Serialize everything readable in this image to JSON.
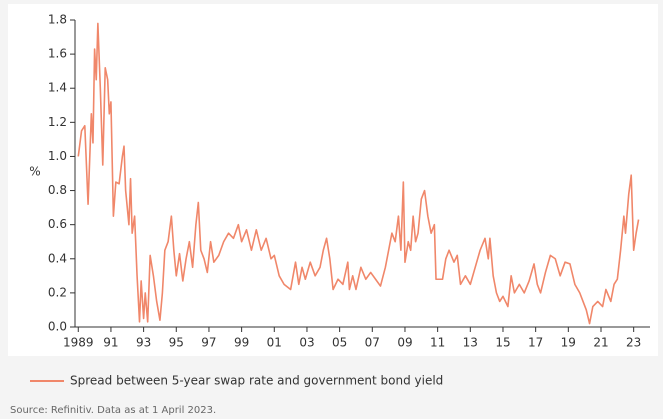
{
  "chart_data": {
    "type": "line",
    "y_label": "%",
    "x": [
      1989.0,
      1989.2,
      1989.4,
      1989.6,
      1989.8,
      1989.9,
      1990.0,
      1990.1,
      1990.2,
      1990.35,
      1990.5,
      1990.65,
      1990.8,
      1990.9,
      1991.0,
      1991.15,
      1991.3,
      1991.5,
      1991.7,
      1991.8,
      1991.9,
      1992.1,
      1992.2,
      1992.3,
      1992.45,
      1992.6,
      1992.75,
      1992.85,
      1993.0,
      1993.1,
      1993.25,
      1993.4,
      1993.6,
      1993.8,
      1994.0,
      1994.15,
      1994.3,
      1994.5,
      1994.7,
      1994.85,
      1995.0,
      1995.2,
      1995.4,
      1995.6,
      1995.8,
      1996.0,
      1996.2,
      1996.35,
      1996.5,
      1996.7,
      1996.9,
      1997.1,
      1997.3,
      1997.6,
      1997.9,
      1998.2,
      1998.5,
      1998.8,
      1999.0,
      1999.3,
      1999.6,
      1999.9,
      2000.2,
      2000.5,
      2000.8,
      2001.0,
      2001.3,
      2001.6,
      2002.0,
      2002.3,
      2002.5,
      2002.7,
      2002.9,
      2003.2,
      2003.5,
      2003.8,
      2004.0,
      2004.2,
      2004.4,
      2004.6,
      2004.9,
      2005.2,
      2005.5,
      2005.6,
      2005.8,
      2006.0,
      2006.3,
      2006.6,
      2006.9,
      2007.2,
      2007.5,
      2007.8,
      2008.0,
      2008.2,
      2008.4,
      2008.6,
      2008.75,
      2008.9,
      2009.0,
      2009.2,
      2009.35,
      2009.5,
      2009.65,
      2009.8,
      2010.0,
      2010.2,
      2010.4,
      2010.6,
      2010.8,
      2010.9,
      2011.3,
      2011.5,
      2011.7,
      2012.0,
      2012.2,
      2012.4,
      2012.7,
      2013.0,
      2013.3,
      2013.6,
      2013.9,
      2014.1,
      2014.2,
      2014.4,
      2014.6,
      2014.8,
      2015.0,
      2015.3,
      2015.5,
      2015.7,
      2016.0,
      2016.3,
      2016.6,
      2016.9,
      2017.1,
      2017.3,
      2017.6,
      2017.9,
      2018.2,
      2018.5,
      2018.8,
      2019.1,
      2019.4,
      2019.7,
      2019.9,
      2020.1,
      2020.3,
      2020.5,
      2020.8,
      2021.1,
      2021.3,
      2021.6,
      2021.8,
      2022.0,
      2022.2,
      2022.4,
      2022.5,
      2022.7,
      2022.85,
      2023.0,
      2023.15,
      2023.3
    ],
    "series": [
      {
        "name": "Spread between 5-year swap rate and government bond yield",
        "color": "#f0876a",
        "values": [
          1.0,
          1.15,
          1.18,
          0.72,
          1.25,
          1.08,
          1.63,
          1.45,
          1.78,
          1.4,
          0.95,
          1.52,
          1.45,
          1.25,
          1.32,
          0.65,
          0.85,
          0.84,
          1.0,
          1.06,
          0.8,
          0.6,
          0.87,
          0.55,
          0.65,
          0.3,
          0.03,
          0.27,
          0.05,
          0.2,
          0.03,
          0.42,
          0.3,
          0.15,
          0.04,
          0.2,
          0.45,
          0.5,
          0.65,
          0.45,
          0.3,
          0.43,
          0.27,
          0.4,
          0.5,
          0.35,
          0.6,
          0.73,
          0.45,
          0.4,
          0.32,
          0.5,
          0.38,
          0.42,
          0.5,
          0.55,
          0.52,
          0.6,
          0.5,
          0.57,
          0.45,
          0.57,
          0.45,
          0.52,
          0.4,
          0.42,
          0.3,
          0.25,
          0.22,
          0.38,
          0.25,
          0.35,
          0.28,
          0.38,
          0.3,
          0.35,
          0.45,
          0.52,
          0.4,
          0.22,
          0.28,
          0.25,
          0.38,
          0.22,
          0.3,
          0.22,
          0.35,
          0.28,
          0.32,
          0.28,
          0.24,
          0.35,
          0.45,
          0.55,
          0.5,
          0.65,
          0.45,
          0.85,
          0.38,
          0.5,
          0.45,
          0.65,
          0.5,
          0.55,
          0.75,
          0.8,
          0.65,
          0.55,
          0.6,
          0.28,
          0.28,
          0.4,
          0.45,
          0.38,
          0.42,
          0.25,
          0.3,
          0.25,
          0.35,
          0.45,
          0.52,
          0.4,
          0.52,
          0.3,
          0.2,
          0.15,
          0.18,
          0.12,
          0.3,
          0.2,
          0.25,
          0.2,
          0.27,
          0.37,
          0.25,
          0.2,
          0.32,
          0.42,
          0.4,
          0.3,
          0.38,
          0.37,
          0.25,
          0.2,
          0.15,
          0.1,
          0.02,
          0.12,
          0.15,
          0.12,
          0.22,
          0.15,
          0.25,
          0.28,
          0.45,
          0.65,
          0.55,
          0.78,
          0.89,
          0.45,
          0.55,
          0.63
        ]
      }
    ],
    "xlim": [
      1988.8,
      2024
    ],
    "xticks": [
      1989,
      {
        "value": 1991,
        "label": "91"
      },
      {
        "value": 1993,
        "label": "93"
      },
      {
        "value": 1995,
        "label": "95"
      },
      {
        "value": 1997,
        "label": "97"
      },
      {
        "value": 1999,
        "label": "99"
      },
      {
        "value": 2001,
        "label": "01"
      },
      {
        "value": 2003,
        "label": "03"
      },
      {
        "value": 2005,
        "label": "05"
      },
      {
        "value": 2007,
        "label": "07"
      },
      {
        "value": 2009,
        "label": "09"
      },
      {
        "value": 2011,
        "label": "11"
      },
      {
        "value": 2013,
        "label": "13"
      },
      {
        "value": 2015,
        "label": "15"
      },
      {
        "value": 2017,
        "label": "17"
      },
      {
        "value": 2019,
        "label": "19"
      },
      {
        "value": 2021,
        "label": "21"
      },
      {
        "value": 2023,
        "label": "23"
      }
    ],
    "ylim": [
      0,
      1.8
    ],
    "yticks": [
      {
        "value": 0,
        "label": "0.0"
      },
      0.2,
      0.4,
      0.6,
      0.8,
      {
        "value": 1,
        "label": "1.0"
      },
      1.2,
      1.4,
      1.6,
      1.8
    ],
    "grid": false,
    "source": "Source: Refinitiv. Data as at 1 April 2023."
  }
}
